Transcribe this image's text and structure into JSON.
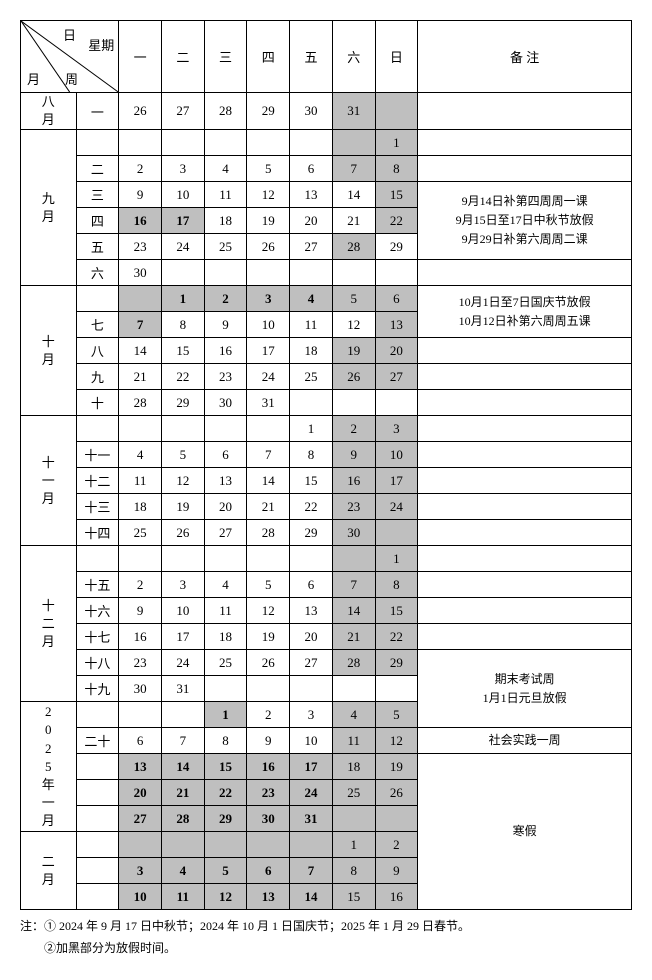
{
  "header": {
    "diag": {
      "top": "日",
      "right": "星期",
      "left": "月",
      "bottom": "周"
    },
    "weekdays": [
      "一",
      "二",
      "三",
      "四",
      "五",
      "六",
      "日"
    ],
    "notes_label": "备 注"
  },
  "months": [
    {
      "label": "八月",
      "rows": [
        {
          "week": "一",
          "days": [
            {
              "t": "26"
            },
            {
              "t": "27"
            },
            {
              "t": "28"
            },
            {
              "t": "29"
            },
            {
              "t": "30"
            },
            {
              "t": "31",
              "s": true
            },
            {
              "t": "",
              "s": true
            }
          ]
        }
      ],
      "notes": []
    },
    {
      "label": "九月",
      "rows": [
        {
          "week": "",
          "days": [
            {
              "t": ""
            },
            {
              "t": ""
            },
            {
              "t": ""
            },
            {
              "t": ""
            },
            {
              "t": ""
            },
            {
              "t": "",
              "s": true
            },
            {
              "t": "1",
              "s": true
            }
          ]
        },
        {
          "week": "二",
          "days": [
            {
              "t": "2"
            },
            {
              "t": "3"
            },
            {
              "t": "4"
            },
            {
              "t": "5"
            },
            {
              "t": "6"
            },
            {
              "t": "7",
              "s": true
            },
            {
              "t": "8",
              "s": true
            }
          ]
        },
        {
          "week": "三",
          "days": [
            {
              "t": "9"
            },
            {
              "t": "10"
            },
            {
              "t": "11"
            },
            {
              "t": "12"
            },
            {
              "t": "13"
            },
            {
              "t": "14"
            },
            {
              "t": "15",
              "s": true
            }
          ]
        },
        {
          "week": "四",
          "days": [
            {
              "t": "16",
              "s": true,
              "b": true
            },
            {
              "t": "17",
              "s": true,
              "b": true
            },
            {
              "t": "18"
            },
            {
              "t": "19"
            },
            {
              "t": "20"
            },
            {
              "t": "21"
            },
            {
              "t": "22",
              "s": true
            }
          ]
        },
        {
          "week": "五",
          "days": [
            {
              "t": "23"
            },
            {
              "t": "24"
            },
            {
              "t": "25"
            },
            {
              "t": "26"
            },
            {
              "t": "27"
            },
            {
              "t": "28",
              "s": true
            },
            {
              "t": "29"
            }
          ]
        },
        {
          "week": "六",
          "days": [
            {
              "t": "30"
            },
            {
              "t": ""
            },
            {
              "t": ""
            },
            {
              "t": ""
            },
            {
              "t": ""
            },
            {
              "t": ""
            },
            {
              "t": ""
            }
          ]
        }
      ],
      "notes": [
        {
          "startRow": 2,
          "span": 3,
          "lines": [
            "9月14日补第四周周一课",
            "9月15日至17日中秋节放假",
            "9月29日补第六周周二课"
          ]
        }
      ]
    },
    {
      "label": "十月",
      "rows": [
        {
          "week": "",
          "days": [
            {
              "t": "",
              "s": true
            },
            {
              "t": "1",
              "s": true,
              "b": true
            },
            {
              "t": "2",
              "s": true,
              "b": true
            },
            {
              "t": "3",
              "s": true,
              "b": true
            },
            {
              "t": "4",
              "s": true,
              "b": true
            },
            {
              "t": "5",
              "s": true
            },
            {
              "t": "6",
              "s": true
            }
          ]
        },
        {
          "week": "七",
          "days": [
            {
              "t": "7",
              "s": true,
              "b": true
            },
            {
              "t": "8"
            },
            {
              "t": "9"
            },
            {
              "t": "10"
            },
            {
              "t": "11"
            },
            {
              "t": "12"
            },
            {
              "t": "13",
              "s": true
            }
          ]
        },
        {
          "week": "八",
          "days": [
            {
              "t": "14"
            },
            {
              "t": "15"
            },
            {
              "t": "16"
            },
            {
              "t": "17"
            },
            {
              "t": "18"
            },
            {
              "t": "19",
              "s": true
            },
            {
              "t": "20",
              "s": true
            }
          ]
        },
        {
          "week": "九",
          "days": [
            {
              "t": "21"
            },
            {
              "t": "22"
            },
            {
              "t": "23"
            },
            {
              "t": "24"
            },
            {
              "t": "25"
            },
            {
              "t": "26",
              "s": true
            },
            {
              "t": "27",
              "s": true
            }
          ]
        },
        {
          "week": "十",
          "days": [
            {
              "t": "28"
            },
            {
              "t": "29"
            },
            {
              "t": "30"
            },
            {
              "t": "31"
            },
            {
              "t": ""
            },
            {
              "t": ""
            },
            {
              "t": ""
            }
          ]
        }
      ],
      "notes": [
        {
          "startRow": 0,
          "span": 2,
          "lines": [
            "10月1日至7日国庆节放假",
            "10月12日补第六周周五课"
          ]
        }
      ]
    },
    {
      "label": "十一月",
      "rows": [
        {
          "week": "",
          "days": [
            {
              "t": ""
            },
            {
              "t": ""
            },
            {
              "t": ""
            },
            {
              "t": ""
            },
            {
              "t": "1"
            },
            {
              "t": "2",
              "s": true
            },
            {
              "t": "3",
              "s": true
            }
          ]
        },
        {
          "week": "十一",
          "days": [
            {
              "t": "4"
            },
            {
              "t": "5"
            },
            {
              "t": "6"
            },
            {
              "t": "7"
            },
            {
              "t": "8"
            },
            {
              "t": "9",
              "s": true
            },
            {
              "t": "10",
              "s": true
            }
          ]
        },
        {
          "week": "十二",
          "days": [
            {
              "t": "11"
            },
            {
              "t": "12"
            },
            {
              "t": "13"
            },
            {
              "t": "14"
            },
            {
              "t": "15"
            },
            {
              "t": "16",
              "s": true
            },
            {
              "t": "17",
              "s": true
            }
          ]
        },
        {
          "week": "十三",
          "days": [
            {
              "t": "18"
            },
            {
              "t": "19"
            },
            {
              "t": "20"
            },
            {
              "t": "21"
            },
            {
              "t": "22"
            },
            {
              "t": "23",
              "s": true
            },
            {
              "t": "24",
              "s": true
            }
          ]
        },
        {
          "week": "十四",
          "days": [
            {
              "t": "25"
            },
            {
              "t": "26"
            },
            {
              "t": "27"
            },
            {
              "t": "28"
            },
            {
              "t": "29"
            },
            {
              "t": "30",
              "s": true
            },
            {
              "t": "",
              "s": true
            }
          ]
        }
      ],
      "notes": []
    },
    {
      "label": "十二月",
      "rows": [
        {
          "week": "",
          "days": [
            {
              "t": ""
            },
            {
              "t": ""
            },
            {
              "t": ""
            },
            {
              "t": ""
            },
            {
              "t": ""
            },
            {
              "t": "",
              "s": true
            },
            {
              "t": "1",
              "s": true
            }
          ]
        },
        {
          "week": "十五",
          "days": [
            {
              "t": "2"
            },
            {
              "t": "3"
            },
            {
              "t": "4"
            },
            {
              "t": "5"
            },
            {
              "t": "6"
            },
            {
              "t": "7",
              "s": true
            },
            {
              "t": "8",
              "s": true
            }
          ]
        },
        {
          "week": "十六",
          "days": [
            {
              "t": "9"
            },
            {
              "t": "10"
            },
            {
              "t": "11"
            },
            {
              "t": "12"
            },
            {
              "t": "13"
            },
            {
              "t": "14",
              "s": true
            },
            {
              "t": "15",
              "s": true
            }
          ]
        },
        {
          "week": "十七",
          "days": [
            {
              "t": "16"
            },
            {
              "t": "17"
            },
            {
              "t": "18"
            },
            {
              "t": "19"
            },
            {
              "t": "20"
            },
            {
              "t": "21",
              "s": true
            },
            {
              "t": "22",
              "s": true
            }
          ]
        },
        {
          "week": "十八",
          "days": [
            {
              "t": "23"
            },
            {
              "t": "24"
            },
            {
              "t": "25"
            },
            {
              "t": "26"
            },
            {
              "t": "27"
            },
            {
              "t": "28",
              "s": true
            },
            {
              "t": "29",
              "s": true
            }
          ]
        },
        {
          "week": "十九",
          "days": [
            {
              "t": "30"
            },
            {
              "t": "31"
            },
            {
              "t": ""
            },
            {
              "t": ""
            },
            {
              "t": ""
            },
            {
              "t": ""
            },
            {
              "t": ""
            }
          ]
        }
      ],
      "notes": []
    },
    {
      "label": "2025 年一月",
      "rows": [
        {
          "week": "",
          "days": [
            {
              "t": ""
            },
            {
              "t": ""
            },
            {
              "t": "1",
              "s": true,
              "b": true
            },
            {
              "t": "2"
            },
            {
              "t": "3"
            },
            {
              "t": "4",
              "s": true
            },
            {
              "t": "5",
              "s": true
            }
          ]
        },
        {
          "week": "二十",
          "days": [
            {
              "t": "6"
            },
            {
              "t": "7"
            },
            {
              "t": "8"
            },
            {
              "t": "9"
            },
            {
              "t": "10"
            },
            {
              "t": "11",
              "s": true
            },
            {
              "t": "12",
              "s": true
            }
          ]
        },
        {
          "week": "",
          "days": [
            {
              "t": "13",
              "s": true,
              "b": true
            },
            {
              "t": "14",
              "s": true,
              "b": true
            },
            {
              "t": "15",
              "s": true,
              "b": true
            },
            {
              "t": "16",
              "s": true,
              "b": true
            },
            {
              "t": "17",
              "s": true,
              "b": true
            },
            {
              "t": "18",
              "s": true
            },
            {
              "t": "19",
              "s": true
            }
          ]
        },
        {
          "week": "",
          "days": [
            {
              "t": "20",
              "s": true,
              "b": true
            },
            {
              "t": "21",
              "s": true,
              "b": true
            },
            {
              "t": "22",
              "s": true,
              "b": true
            },
            {
              "t": "23",
              "s": true,
              "b": true
            },
            {
              "t": "24",
              "s": true,
              "b": true
            },
            {
              "t": "25",
              "s": true
            },
            {
              "t": "26",
              "s": true
            }
          ]
        },
        {
          "week": "",
          "days": [
            {
              "t": "27",
              "s": true,
              "b": true
            },
            {
              "t": "28",
              "s": true,
              "b": true
            },
            {
              "t": "29",
              "s": true,
              "b": true
            },
            {
              "t": "30",
              "s": true,
              "b": true
            },
            {
              "t": "31",
              "s": true,
              "b": true
            },
            {
              "t": "",
              "s": true
            },
            {
              "t": "",
              "s": true
            }
          ]
        }
      ],
      "notes": []
    },
    {
      "label": "二月",
      "rows": [
        {
          "week": "",
          "days": [
            {
              "t": "",
              "s": true
            },
            {
              "t": "",
              "s": true
            },
            {
              "t": "",
              "s": true
            },
            {
              "t": "",
              "s": true
            },
            {
              "t": "",
              "s": true
            },
            {
              "t": "1",
              "s": true
            },
            {
              "t": "2",
              "s": true
            }
          ]
        },
        {
          "week": "",
          "days": [
            {
              "t": "3",
              "s": true,
              "b": true
            },
            {
              "t": "4",
              "s": true,
              "b": true
            },
            {
              "t": "5",
              "s": true,
              "b": true
            },
            {
              "t": "6",
              "s": true,
              "b": true
            },
            {
              "t": "7",
              "s": true,
              "b": true
            },
            {
              "t": "8",
              "s": true
            },
            {
              "t": "9",
              "s": true
            }
          ]
        },
        {
          "week": "",
          "days": [
            {
              "t": "10",
              "s": true,
              "b": true
            },
            {
              "t": "11",
              "s": true,
              "b": true
            },
            {
              "t": "12",
              "s": true,
              "b": true
            },
            {
              "t": "13",
              "s": true,
              "b": true
            },
            {
              "t": "14",
              "s": true,
              "b": true
            },
            {
              "t": "15",
              "s": true
            },
            {
              "t": "16",
              "s": true
            }
          ]
        }
      ],
      "notes": []
    }
  ],
  "extra_notes": [
    {
      "monthIdx": 4,
      "startRow": 4,
      "span": 3,
      "lines": [
        "期末考试周",
        "1月1日元旦放假"
      ]
    },
    {
      "monthIdx": 5,
      "startRow": 1,
      "span": 1,
      "lines": [
        "社会实践一周"
      ]
    },
    {
      "monthIdx": 5,
      "startRow": 2,
      "span": 6,
      "lines": [
        "寒假"
      ]
    }
  ],
  "footnotes": [
    "注：① 2024 年 9 月 17 日中秋节；2024 年 10 月 1 日国庆节；2025 年 1 月 29 日春节。",
    "　　②加黑部分为放假时间。"
  ]
}
